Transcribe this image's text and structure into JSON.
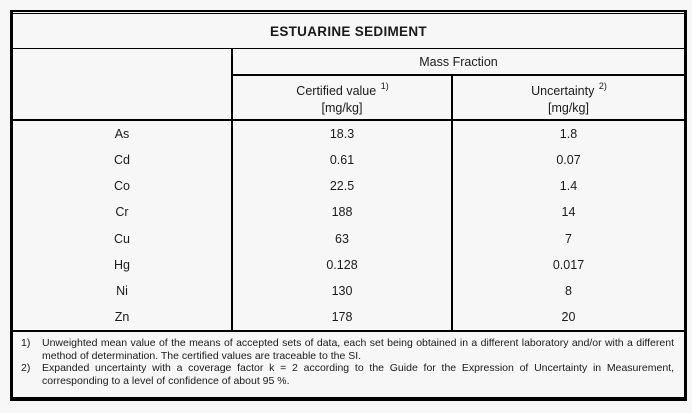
{
  "page": {
    "background_color": "#f7f7f7",
    "border_color": "#000000",
    "text_color": "#1a1a1a"
  },
  "table": {
    "title": "ESTUARINE SEDIMENT",
    "group_header": "Mass Fraction",
    "columns": [
      {
        "label": "Certified value",
        "footnote_ref": "1)",
        "unit": "[mg/kg]"
      },
      {
        "label": "Uncertainty",
        "footnote_ref": "2)",
        "unit": "[mg/kg]"
      }
    ],
    "rows": [
      {
        "element": "As",
        "certified_value": "18.3",
        "uncertainty": "1.8"
      },
      {
        "element": "Cd",
        "certified_value": "0.61",
        "uncertainty": "0.07"
      },
      {
        "element": "Co",
        "certified_value": "22.5",
        "uncertainty": "1.4"
      },
      {
        "element": "Cr",
        "certified_value": "188",
        "uncertainty": "14"
      },
      {
        "element": "Cu",
        "certified_value": "63",
        "uncertainty": "7"
      },
      {
        "element": "Hg",
        "certified_value": "0.128",
        "uncertainty": "0.017"
      },
      {
        "element": "Ni",
        "certified_value": "130",
        "uncertainty": "8"
      },
      {
        "element": "Zn",
        "certified_value": "178",
        "uncertainty": "20"
      }
    ],
    "footnotes": [
      {
        "marker": "1)",
        "text": "Unweighted mean value of the means of accepted sets of data, each set being obtained in a different laboratory and/or with a different method of determination. The certified values are traceable to the SI."
      },
      {
        "marker": "2)",
        "text": "Expanded uncertainty with a coverage factor k = 2 according to the Guide for the Expression of Uncertainty in Measurement, corresponding to a level of confidence of about 95 %."
      }
    ]
  }
}
